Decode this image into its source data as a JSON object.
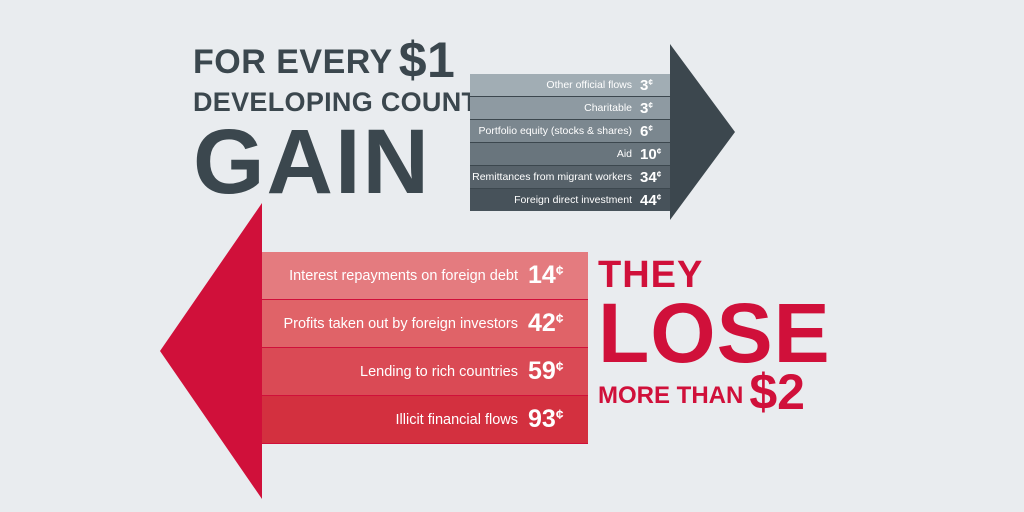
{
  "gain": {
    "line1": "FOR EVERY",
    "amount": "$1",
    "line2": "DEVELOPING COUNTRIES",
    "line3": "GAIN",
    "rows": [
      {
        "label": "Other official flows",
        "value": "3",
        "unit": "¢"
      },
      {
        "label": "Charitable",
        "value": "3",
        "unit": "¢"
      },
      {
        "label": "Portfolio equity (stocks & shares)",
        "value": "6",
        "unit": "¢"
      },
      {
        "label": "Aid",
        "value": "10",
        "unit": "¢"
      },
      {
        "label": "Remittances from migrant workers",
        "value": "34",
        "unit": "¢"
      },
      {
        "label": "Foreign direct investment",
        "value": "44",
        "unit": "¢"
      }
    ]
  },
  "lose": {
    "line1": "THEY",
    "line2": "LOSE",
    "line3": "MORE THAN",
    "amount": "$2",
    "rows": [
      {
        "label": "Interest repayments on foreign debt",
        "value": "14",
        "unit": "¢"
      },
      {
        "label": "Profits taken out by foreign investors",
        "value": "42",
        "unit": "¢"
      },
      {
        "label": "Lending to rich countries",
        "value": "59",
        "unit": "¢"
      },
      {
        "label": "Illicit financial flows",
        "value": "93",
        "unit": "¢"
      }
    ]
  },
  "colors": {
    "background": "#e9ecef",
    "gain_text": "#3b474e",
    "gain_arrow": "#3c474e",
    "gain_rows": [
      "#a1adb4",
      "#8e9aa2",
      "#7b878f",
      "#69757d",
      "#57626a",
      "#47525a"
    ],
    "lose_text": "#d0103a",
    "lose_arrow": "#d0103a",
    "lose_rows": [
      "#e47b7f",
      "#e06368",
      "#da4a55",
      "#d3303f"
    ]
  }
}
